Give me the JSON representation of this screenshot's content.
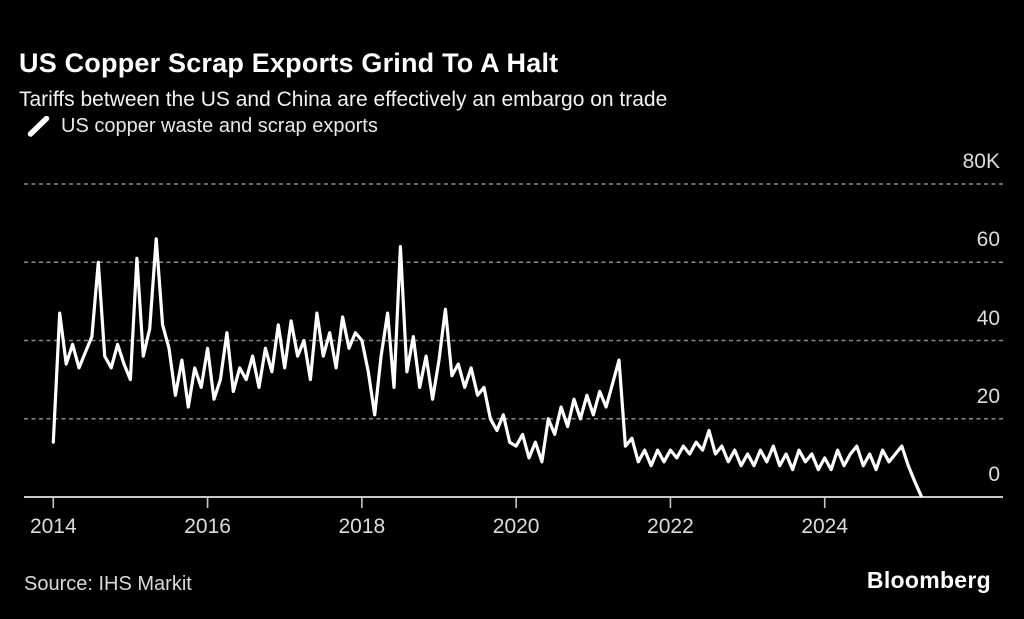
{
  "header": {
    "title": "US Copper Scrap Exports Grind To A Halt",
    "subtitle": "Tariffs between the US and China are effectively an embargo on trade"
  },
  "legend": {
    "label": "US copper waste and scrap exports"
  },
  "footer": {
    "source": "Source: IHS Markit",
    "brand": "Bloomberg"
  },
  "colors": {
    "background": "#000000",
    "series_line": "#ffffff",
    "gridline": "#8a8a8a",
    "axis_line": "#c8c8c8",
    "title_text": "#ffffff",
    "muted_text": "#dcdcdc"
  },
  "chart_data": {
    "type": "line",
    "title": "US Copper Scrap Exports Grind To A Halt",
    "subtitle": "Tariffs between the US and China are effectively an embargo on trade",
    "series_name": "US copper waste and scrap exports",
    "frequency": "monthly",
    "x_start": {
      "year": 2014,
      "month": 1
    },
    "x_end": {
      "year": 2025,
      "month": 4
    },
    "values_thousands": [
      14,
      47,
      34,
      39,
      33,
      37,
      41,
      60,
      36,
      33,
      39,
      34,
      30,
      61,
      36,
      43,
      66,
      44,
      38,
      26,
      35,
      23,
      33,
      28,
      38,
      25,
      30,
      42,
      27,
      33,
      30,
      36,
      28,
      38,
      32,
      44,
      33,
      45,
      36,
      40,
      30,
      47,
      36,
      42,
      33,
      46,
      38,
      42,
      40,
      32,
      21,
      36,
      47,
      28,
      64,
      32,
      41,
      28,
      36,
      25,
      35,
      48,
      31,
      34,
      28,
      33,
      26,
      28,
      20,
      17,
      21,
      14,
      13,
      16,
      10,
      14,
      9,
      20,
      16,
      23,
      18,
      25,
      20,
      26,
      21,
      27,
      23,
      29,
      35,
      13,
      15,
      9,
      12,
      8,
      12,
      9,
      12,
      10,
      13,
      11,
      14,
      12,
      17,
      11,
      13,
      9,
      12,
      8,
      11,
      8,
      12,
      9,
      13,
      8,
      11,
      7,
      12,
      9,
      11,
      7,
      10,
      7,
      12,
      8,
      11,
      13,
      8,
      11,
      7,
      12,
      9,
      11,
      13,
      8,
      4,
      0.3
    ],
    "y_ticks": [
      {
        "value": 80,
        "label": "80K"
      },
      {
        "value": 60,
        "label": "60"
      },
      {
        "value": 40,
        "label": "40"
      },
      {
        "value": 20,
        "label": "20"
      },
      {
        "value": 0,
        "label": "0"
      }
    ],
    "x_ticks": [
      {
        "year": 2014,
        "label": "2014"
      },
      {
        "year": 2016,
        "label": "2016"
      },
      {
        "year": 2018,
        "label": "2018"
      },
      {
        "year": 2020,
        "label": "2020"
      },
      {
        "year": 2022,
        "label": "2022"
      },
      {
        "year": 2024,
        "label": "2024"
      }
    ],
    "ylim": [
      0,
      80
    ],
    "grid": "horizontal-dashed",
    "legend_position": "top-left",
    "y_axis_side": "right"
  }
}
